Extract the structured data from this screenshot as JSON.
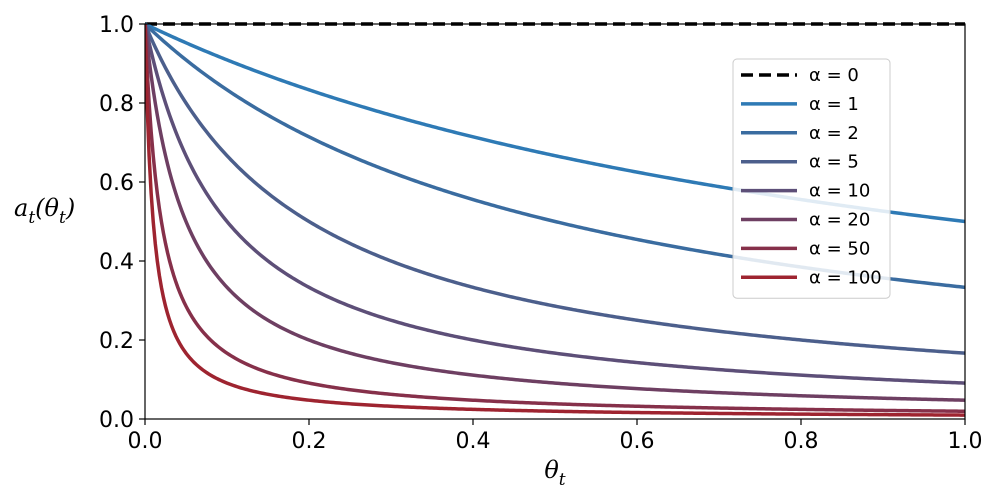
{
  "chart_data": {
    "type": "line",
    "title": "",
    "xlabel": "θ",
    "xlabel_sub": "t",
    "ylabel_parts": [
      "a",
      "t",
      "(θ",
      "t",
      ")"
    ],
    "xlim": [
      0.0,
      1.0
    ],
    "ylim": [
      0.0,
      1.0
    ],
    "xticks": [
      0.0,
      0.2,
      0.4,
      0.6,
      0.8,
      1.0
    ],
    "xtick_labels": [
      "0.0",
      "0.2",
      "0.4",
      "0.6",
      "0.8",
      "1.0"
    ],
    "yticks": [
      0.0,
      0.2,
      0.4,
      0.6,
      0.8,
      1.0
    ],
    "ytick_labels": [
      "0.0",
      "0.2",
      "0.4",
      "0.6",
      "0.8",
      "1.0"
    ],
    "grid": false,
    "legend_position": "upper-right",
    "function": "1 / (1 + alpha * theta)",
    "series": [
      {
        "name": "α = 0",
        "alpha": 0,
        "color": "#000000",
        "dashed": true
      },
      {
        "name": "α = 1",
        "alpha": 1,
        "color": "#2e7ab5",
        "dashed": false
      },
      {
        "name": "α = 2",
        "alpha": 2,
        "color": "#3a6ca0",
        "dashed": false
      },
      {
        "name": "α = 5",
        "alpha": 5,
        "color": "#4c5f8c",
        "dashed": false
      },
      {
        "name": "α = 10",
        "alpha": 10,
        "color": "#5d4f78",
        "dashed": false
      },
      {
        "name": "α = 20",
        "alpha": 20,
        "color": "#6e3f62",
        "dashed": false
      },
      {
        "name": "α = 50",
        "alpha": 50,
        "color": "#86304a",
        "dashed": false
      },
      {
        "name": "α = 100",
        "alpha": 100,
        "color": "#9e2430",
        "dashed": false
      }
    ]
  }
}
